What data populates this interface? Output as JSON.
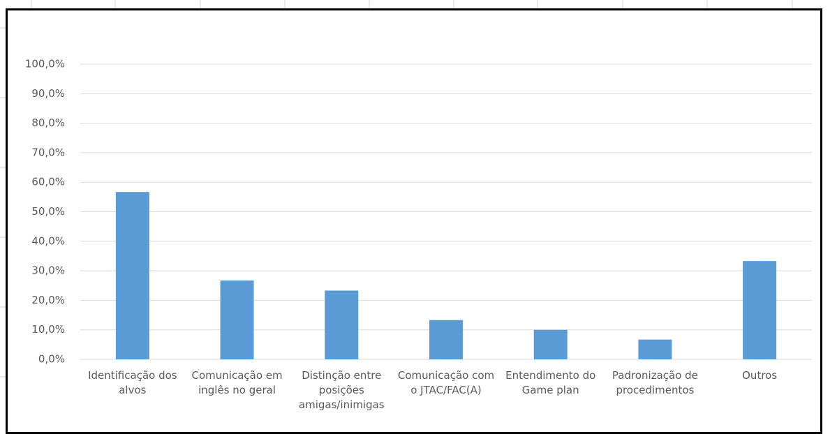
{
  "chart_data": {
    "type": "bar",
    "categories": [
      "Identificação dos alvos",
      "Comunicação em inglês no geral",
      "Distinção entre posições amigas/inimigas",
      "Comunicação com o JTAC/FAC(A)",
      "Entendimento do Game plan",
      "Padronização de procedimentos",
      "Outros"
    ],
    "values": [
      56.7,
      26.7,
      23.3,
      13.3,
      10.0,
      6.7,
      33.3
    ],
    "color": "#5b9bd5",
    "ylim": [
      0,
      100
    ],
    "yticks": [
      {
        "value": 0,
        "label": "0,0%"
      },
      {
        "value": 10,
        "label": "10,0%"
      },
      {
        "value": 20,
        "label": "20,0%"
      },
      {
        "value": 30,
        "label": "30,0%"
      },
      {
        "value": 40,
        "label": "40,0%"
      },
      {
        "value": 50,
        "label": "50,0%"
      },
      {
        "value": 60,
        "label": "60,0%"
      },
      {
        "value": 70,
        "label": "70,0%"
      },
      {
        "value": 80,
        "label": "80,0%"
      },
      {
        "value": 90,
        "label": "90,0%"
      },
      {
        "value": 100,
        "label": "100,0%"
      }
    ],
    "grid": true
  }
}
